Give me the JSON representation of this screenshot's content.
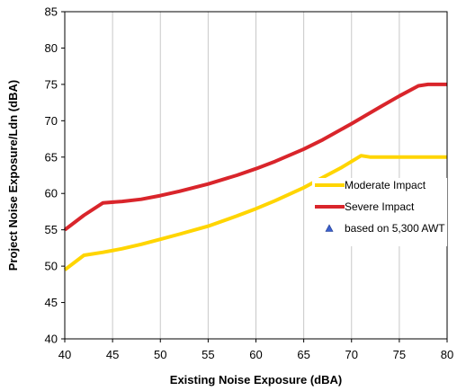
{
  "chart_data": {
    "type": "line",
    "xlabel": "Existing Noise Exposure (dBA)",
    "ylabel": "Project Noise Exposure/Ldn (dBA)",
    "xlim": [
      40,
      80
    ],
    "ylim": [
      40,
      85
    ],
    "x_ticks": [
      "40",
      "45",
      "50",
      "55",
      "60",
      "65",
      "70",
      "75",
      "80"
    ],
    "y_ticks": [
      "40",
      "45",
      "50",
      "55",
      "60",
      "65",
      "70",
      "75",
      "80",
      "85"
    ],
    "grid": "vertical",
    "legend_position": "right",
    "series": [
      {
        "name": "Moderate Impact",
        "color": "#FFD500",
        "points": [
          [
            40,
            49.5
          ],
          [
            42,
            51.5
          ],
          [
            44,
            51.9
          ],
          [
            46,
            52.4
          ],
          [
            48,
            53.0
          ],
          [
            50,
            53.7
          ],
          [
            52,
            54.4
          ],
          [
            55,
            55.5
          ],
          [
            58,
            56.9
          ],
          [
            60,
            57.9
          ],
          [
            62,
            59.0
          ],
          [
            65,
            60.8
          ],
          [
            67,
            62.2
          ],
          [
            69,
            63.6
          ],
          [
            71,
            65.2
          ],
          [
            72,
            65.0
          ],
          [
            75,
            65.0
          ],
          [
            80,
            65.0
          ]
        ]
      },
      {
        "name": "Severe Impact",
        "color": "#D9252B",
        "points": [
          [
            40,
            55
          ],
          [
            42,
            57
          ],
          [
            44,
            58.7
          ],
          [
            46,
            58.9
          ],
          [
            48,
            59.2
          ],
          [
            50,
            59.7
          ],
          [
            52,
            60.3
          ],
          [
            55,
            61.3
          ],
          [
            58,
            62.5
          ],
          [
            60,
            63.4
          ],
          [
            62,
            64.4
          ],
          [
            65,
            66.1
          ],
          [
            67,
            67.4
          ],
          [
            70,
            69.6
          ],
          [
            73,
            71.9
          ],
          [
            75,
            73.4
          ],
          [
            77,
            74.8
          ],
          [
            78,
            75.0
          ],
          [
            80,
            75.0
          ]
        ]
      },
      {
        "name": "based on 5,300 AWT",
        "color": "#3A5FCD",
        "marker": "triangle",
        "points": []
      }
    ]
  }
}
